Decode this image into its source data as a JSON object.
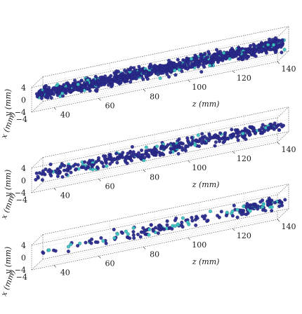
{
  "chart_data": [
    {
      "type": "scatter",
      "panel": "panel-1",
      "projection": "3d",
      "xlabel": "x (mm)",
      "ylabel": "y (mm)",
      "zlabel": "z (mm)",
      "xlim": [
        -4,
        4
      ],
      "ylim": [
        -4,
        4
      ],
      "zlim": [
        30,
        140
      ],
      "x_ticks": [
        "4",
        "0",
        "−4"
      ],
      "y_ticks": [
        "4",
        "0",
        "−4"
      ],
      "x_tick_labels": [
        "−4"
      ],
      "z_ticks": [
        "40",
        "60",
        "80",
        "100",
        "120",
        "140"
      ],
      "grid": true,
      "colors": {
        "dominant": "#2b2b8f",
        "secondary": "#3cc4c0"
      },
      "density": {
        "z_bins": [
          30,
          40,
          50,
          60,
          70,
          80,
          90,
          100,
          110,
          120,
          130,
          140
        ],
        "points_per_bin": [
          100,
          100,
          100,
          100,
          100,
          100,
          100,
          100,
          100,
          100,
          100
        ],
        "cyan_fraction": 0.1
      }
    },
    {
      "type": "scatter",
      "panel": "panel-2",
      "projection": "3d",
      "xlabel": "x (mm)",
      "ylabel": "y (mm)",
      "zlabel": "z (mm)",
      "xlim": [
        -4,
        4
      ],
      "ylim": [
        -4,
        4
      ],
      "zlim": [
        30,
        140
      ],
      "x_ticks": [
        "4",
        "0",
        "−4"
      ],
      "y_ticks": [
        "4",
        "0",
        "−4"
      ],
      "x_tick_labels": [
        "−4"
      ],
      "z_ticks": [
        "40",
        "60",
        "80",
        "100",
        "120",
        "140"
      ],
      "grid": true,
      "colors": {
        "dominant": "#2b2b8f",
        "secondary": "#3cc4c0"
      },
      "density": {
        "z_bins": [
          30,
          40,
          50,
          60,
          70,
          80,
          90,
          100,
          110,
          120,
          130,
          140
        ],
        "points_per_bin": [
          25,
          30,
          35,
          35,
          40,
          45,
          45,
          35,
          35,
          40,
          35
        ],
        "cyan_fraction": 0.12
      }
    },
    {
      "type": "scatter",
      "panel": "panel-3",
      "projection": "3d",
      "xlabel": "x (mm)",
      "ylabel": "y (mm)",
      "zlabel": "z (mm)",
      "xlim": [
        -4,
        4
      ],
      "ylim": [
        -4,
        4
      ],
      "zlim": [
        30,
        140
      ],
      "x_ticks": [
        "4",
        "0",
        "−4"
      ],
      "y_ticks": [
        "4",
        "0",
        "−4"
      ],
      "x_tick_labels": [
        "−4"
      ],
      "z_ticks": [
        "40",
        "60",
        "80",
        "100",
        "120",
        "140"
      ],
      "grid": true,
      "colors": {
        "dominant": "#2b2b8f",
        "secondary": "#3cc4c0"
      },
      "density": {
        "z_bins": [
          30,
          40,
          50,
          60,
          70,
          80,
          90,
          100,
          110,
          120,
          130,
          140
        ],
        "points_per_bin": [
          6,
          6,
          8,
          12,
          20,
          28,
          18,
          10,
          12,
          40,
          38
        ],
        "cyan_fraction": 0.25
      }
    }
  ]
}
